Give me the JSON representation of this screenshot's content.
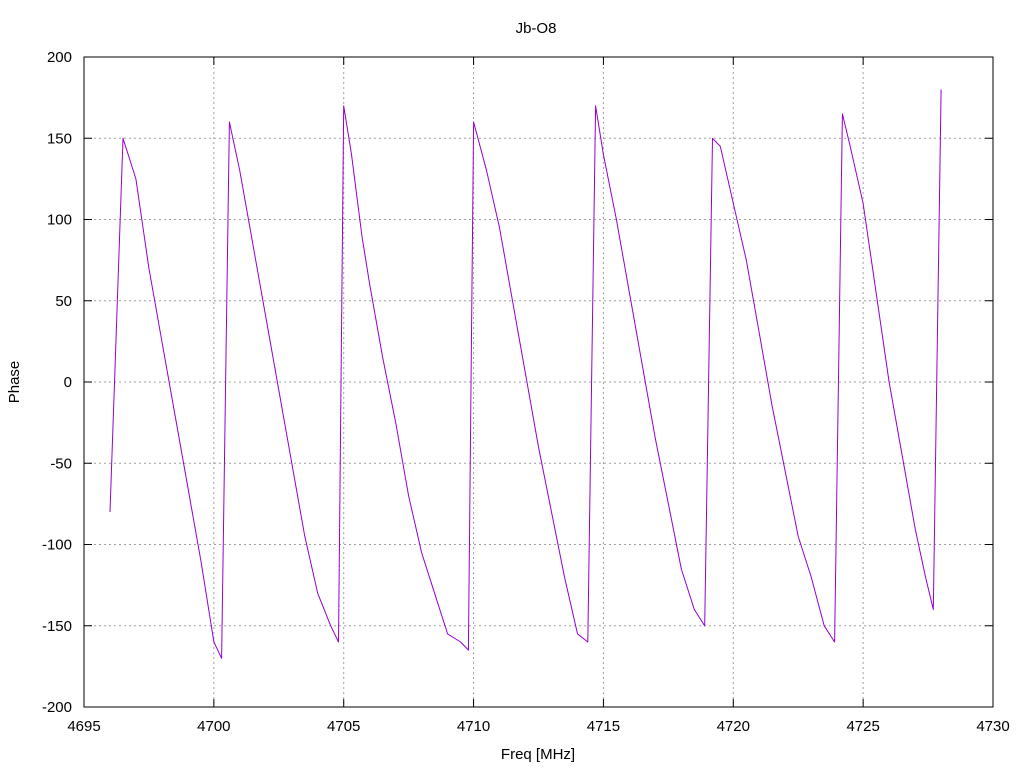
{
  "chart_data": {
    "type": "line",
    "title": "Jb-O8",
    "xlabel": "Freq [MHz]",
    "ylabel": "Phase",
    "xlim": [
      4695,
      4730
    ],
    "ylim": [
      -200,
      200
    ],
    "xticks": [
      4695,
      4700,
      4705,
      4710,
      4715,
      4720,
      4725,
      4730
    ],
    "yticks": [
      -200,
      -150,
      -100,
      -50,
      0,
      50,
      100,
      150,
      200
    ],
    "grid": true,
    "legend": "none",
    "series": [
      {
        "color": "#9400d3",
        "x": [
          4696.0,
          4696.5,
          4697.0,
          4697.5,
          4698.0,
          4698.5,
          4699.0,
          4699.5,
          4700.0,
          4700.3,
          4700.6,
          4701.0,
          4701.5,
          4702.0,
          4702.5,
          4703.0,
          4703.5,
          4704.0,
          4704.5,
          4704.8,
          4705.0,
          4705.3,
          4705.7,
          4706.0,
          4706.5,
          4707.0,
          4707.5,
          4708.0,
          4708.5,
          4709.0,
          4709.5,
          4709.8,
          4710.0,
          4710.5,
          4711.0,
          4711.5,
          4712.0,
          4712.5,
          4713.0,
          4713.5,
          4714.0,
          4714.4,
          4714.7,
          4715.0,
          4715.5,
          4716.0,
          4716.5,
          4717.0,
          4717.5,
          4718.0,
          4718.5,
          4718.9,
          4719.2,
          4719.5,
          4720.0,
          4720.5,
          4721.0,
          4721.5,
          4722.0,
          4722.5,
          4723.0,
          4723.5,
          4723.9,
          4724.2,
          4724.5,
          4725.0,
          4725.5,
          4726.0,
          4726.5,
          4727.0,
          4727.4,
          4727.7,
          4728.0
        ],
        "y": [
          -80,
          150,
          125,
          70,
          25,
          -20,
          -65,
          -110,
          -160,
          -170,
          160,
          130,
          85,
          40,
          -5,
          -50,
          -95,
          -130,
          -150,
          -160,
          170,
          140,
          90,
          60,
          15,
          -25,
          -70,
          -105,
          -130,
          -155,
          -160,
          -165,
          160,
          130,
          95,
          50,
          5,
          -40,
          -80,
          -120,
          -155,
          -160,
          170,
          140,
          100,
          55,
          10,
          -35,
          -75,
          -115,
          -140,
          -150,
          150,
          145,
          110,
          75,
          30,
          -15,
          -55,
          -95,
          -120,
          -150,
          -160,
          165,
          145,
          110,
          55,
          0,
          -45,
          -90,
          -120,
          -140,
          180
        ]
      }
    ]
  }
}
